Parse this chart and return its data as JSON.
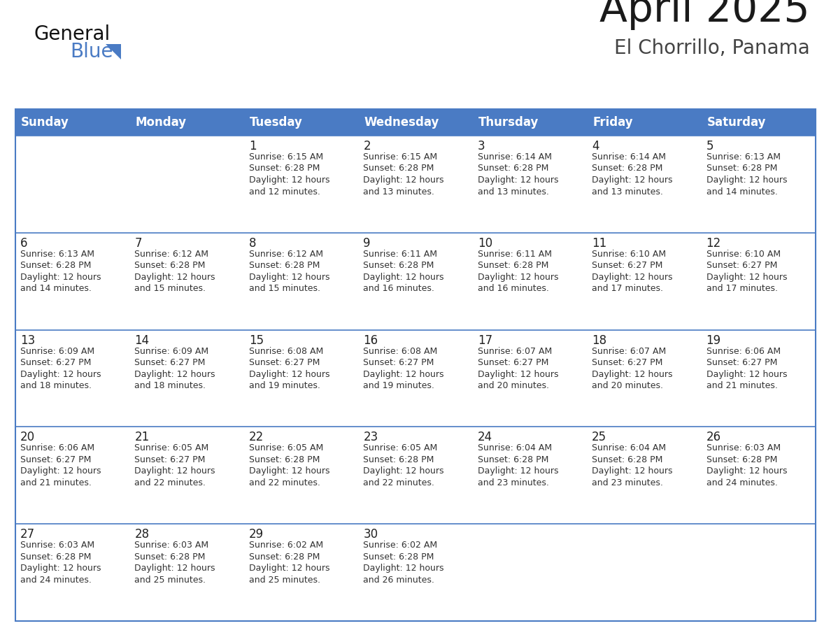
{
  "title": "April 2025",
  "subtitle": "El Chorrillo, Panama",
  "days_of_week": [
    "Sunday",
    "Monday",
    "Tuesday",
    "Wednesday",
    "Thursday",
    "Friday",
    "Saturday"
  ],
  "header_bg_color": "#4A7BC4",
  "header_text_color": "#FFFFFF",
  "row_bg_color": "#FFFFFF",
  "row_separator_color": "#4A7BC4",
  "outer_border_color": "#4A7BC4",
  "title_color": "#1a1a1a",
  "subtitle_color": "#444444",
  "day_number_color": "#222222",
  "cell_text_color": "#333333",
  "logo_general_color": "#111111",
  "logo_blue_color": "#4A7BC4",
  "logo_triangle_color": "#4A7BC4",
  "calendar_data": [
    [
      null,
      null,
      {
        "day": 1,
        "sunrise": "6:15 AM",
        "sunset": "6:28 PM",
        "dl1": "Daylight: 12 hours",
        "dl2": "and 12 minutes."
      },
      {
        "day": 2,
        "sunrise": "6:15 AM",
        "sunset": "6:28 PM",
        "dl1": "Daylight: 12 hours",
        "dl2": "and 13 minutes."
      },
      {
        "day": 3,
        "sunrise": "6:14 AM",
        "sunset": "6:28 PM",
        "dl1": "Daylight: 12 hours",
        "dl2": "and 13 minutes."
      },
      {
        "day": 4,
        "sunrise": "6:14 AM",
        "sunset": "6:28 PM",
        "dl1": "Daylight: 12 hours",
        "dl2": "and 13 minutes."
      },
      {
        "day": 5,
        "sunrise": "6:13 AM",
        "sunset": "6:28 PM",
        "dl1": "Daylight: 12 hours",
        "dl2": "and 14 minutes."
      }
    ],
    [
      {
        "day": 6,
        "sunrise": "6:13 AM",
        "sunset": "6:28 PM",
        "dl1": "Daylight: 12 hours",
        "dl2": "and 14 minutes."
      },
      {
        "day": 7,
        "sunrise": "6:12 AM",
        "sunset": "6:28 PM",
        "dl1": "Daylight: 12 hours",
        "dl2": "and 15 minutes."
      },
      {
        "day": 8,
        "sunrise": "6:12 AM",
        "sunset": "6:28 PM",
        "dl1": "Daylight: 12 hours",
        "dl2": "and 15 minutes."
      },
      {
        "day": 9,
        "sunrise": "6:11 AM",
        "sunset": "6:28 PM",
        "dl1": "Daylight: 12 hours",
        "dl2": "and 16 minutes."
      },
      {
        "day": 10,
        "sunrise": "6:11 AM",
        "sunset": "6:28 PM",
        "dl1": "Daylight: 12 hours",
        "dl2": "and 16 minutes."
      },
      {
        "day": 11,
        "sunrise": "6:10 AM",
        "sunset": "6:27 PM",
        "dl1": "Daylight: 12 hours",
        "dl2": "and 17 minutes."
      },
      {
        "day": 12,
        "sunrise": "6:10 AM",
        "sunset": "6:27 PM",
        "dl1": "Daylight: 12 hours",
        "dl2": "and 17 minutes."
      }
    ],
    [
      {
        "day": 13,
        "sunrise": "6:09 AM",
        "sunset": "6:27 PM",
        "dl1": "Daylight: 12 hours",
        "dl2": "and 18 minutes."
      },
      {
        "day": 14,
        "sunrise": "6:09 AM",
        "sunset": "6:27 PM",
        "dl1": "Daylight: 12 hours",
        "dl2": "and 18 minutes."
      },
      {
        "day": 15,
        "sunrise": "6:08 AM",
        "sunset": "6:27 PM",
        "dl1": "Daylight: 12 hours",
        "dl2": "and 19 minutes."
      },
      {
        "day": 16,
        "sunrise": "6:08 AM",
        "sunset": "6:27 PM",
        "dl1": "Daylight: 12 hours",
        "dl2": "and 19 minutes."
      },
      {
        "day": 17,
        "sunrise": "6:07 AM",
        "sunset": "6:27 PM",
        "dl1": "Daylight: 12 hours",
        "dl2": "and 20 minutes."
      },
      {
        "day": 18,
        "sunrise": "6:07 AM",
        "sunset": "6:27 PM",
        "dl1": "Daylight: 12 hours",
        "dl2": "and 20 minutes."
      },
      {
        "day": 19,
        "sunrise": "6:06 AM",
        "sunset": "6:27 PM",
        "dl1": "Daylight: 12 hours",
        "dl2": "and 21 minutes."
      }
    ],
    [
      {
        "day": 20,
        "sunrise": "6:06 AM",
        "sunset": "6:27 PM",
        "dl1": "Daylight: 12 hours",
        "dl2": "and 21 minutes."
      },
      {
        "day": 21,
        "sunrise": "6:05 AM",
        "sunset": "6:27 PM",
        "dl1": "Daylight: 12 hours",
        "dl2": "and 22 minutes."
      },
      {
        "day": 22,
        "sunrise": "6:05 AM",
        "sunset": "6:28 PM",
        "dl1": "Daylight: 12 hours",
        "dl2": "and 22 minutes."
      },
      {
        "day": 23,
        "sunrise": "6:05 AM",
        "sunset": "6:28 PM",
        "dl1": "Daylight: 12 hours",
        "dl2": "and 22 minutes."
      },
      {
        "day": 24,
        "sunrise": "6:04 AM",
        "sunset": "6:28 PM",
        "dl1": "Daylight: 12 hours",
        "dl2": "and 23 minutes."
      },
      {
        "day": 25,
        "sunrise": "6:04 AM",
        "sunset": "6:28 PM",
        "dl1": "Daylight: 12 hours",
        "dl2": "and 23 minutes."
      },
      {
        "day": 26,
        "sunrise": "6:03 AM",
        "sunset": "6:28 PM",
        "dl1": "Daylight: 12 hours",
        "dl2": "and 24 minutes."
      }
    ],
    [
      {
        "day": 27,
        "sunrise": "6:03 AM",
        "sunset": "6:28 PM",
        "dl1": "Daylight: 12 hours",
        "dl2": "and 24 minutes."
      },
      {
        "day": 28,
        "sunrise": "6:03 AM",
        "sunset": "6:28 PM",
        "dl1": "Daylight: 12 hours",
        "dl2": "and 25 minutes."
      },
      {
        "day": 29,
        "sunrise": "6:02 AM",
        "sunset": "6:28 PM",
        "dl1": "Daylight: 12 hours",
        "dl2": "and 25 minutes."
      },
      {
        "day": 30,
        "sunrise": "6:02 AM",
        "sunset": "6:28 PM",
        "dl1": "Daylight: 12 hours",
        "dl2": "and 26 minutes."
      },
      null,
      null,
      null
    ]
  ]
}
